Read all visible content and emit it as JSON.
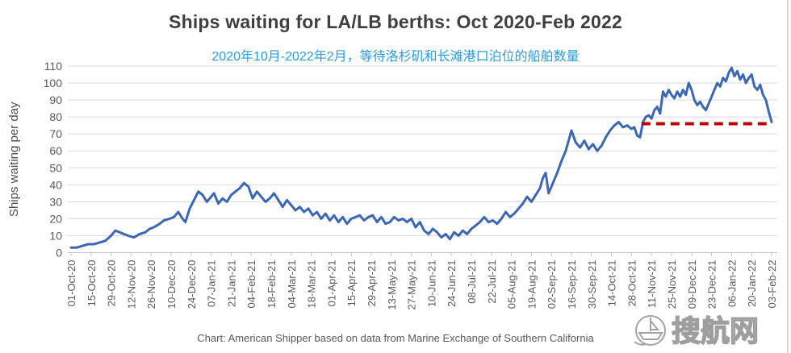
{
  "header": {
    "title": "Ships waiting for LA/LB berths: Oct 2020-Feb 2022",
    "subtitle": "2020年10月-2022年2月，等待洛杉矶和长滩港口泊位的船舶数量"
  },
  "caption": "Chart: American Shipper based on data from Marine Exchange of Southern California",
  "watermark": {
    "text": "搜航网",
    "icon": "ship-logo"
  },
  "colors": {
    "title": "#3f3f3f",
    "subtitle": "#2b9cd8",
    "series_blue": "#3d66b3",
    "reference_red": "#c00000",
    "gridline": "#d9d9d9",
    "axis_line": "#bfbfbf",
    "axis_text": "#595959",
    "watermark_gray": "#9e9e9e"
  },
  "chart_data": {
    "type": "line",
    "title": "Ships waiting for LA/LB berths: Oct 2020-Feb 2022",
    "ylabel": "Ships waiting per day",
    "xlabel": "",
    "ylim": [
      0,
      110
    ],
    "y_ticks": [
      0,
      10,
      20,
      30,
      40,
      50,
      60,
      70,
      80,
      90,
      100,
      110
    ],
    "grid": "horizontal",
    "legend_position": "none",
    "x_tick_interval_days": 14,
    "x_max_day": 490,
    "x_tick_labels": [
      "01-Oct-20",
      "15-Oct-20",
      "29-Oct-20",
      "12-Nov-20",
      "26-Nov-20",
      "10-Dec-20",
      "24-Dec-20",
      "07-Jan-21",
      "21-Jan-21",
      "04-Feb-21",
      "18-Feb-21",
      "04-Mar-21",
      "18-Mar-21",
      "01-Apr-21",
      "15-Apr-21",
      "29-Apr-21",
      "13-May-21",
      "27-May-21",
      "10-Jun-21",
      "24-Jun-21",
      "08-Jul-21",
      "22-Jul-21",
      "05-Aug-21",
      "19-Aug-21",
      "02-Sep-21",
      "16-Sep-21",
      "30-Sep-21",
      "14-Oct-21",
      "28-Oct-21",
      "11-Nov-21",
      "25-Nov-21",
      "09-Dec-21",
      "23-Dec-21",
      "06-Jan-22",
      "20-Jan-22",
      "03-Feb-22"
    ],
    "series": [
      {
        "name": "Ships waiting",
        "color": "#3d66b3",
        "x_days": [
          0,
          4,
          8,
          12,
          16,
          20,
          24,
          28,
          31,
          34,
          37,
          40,
          44,
          48,
          52,
          55,
          58,
          62,
          65,
          69,
          72,
          75,
          78,
          80,
          83,
          86,
          89,
          92,
          95,
          98,
          100,
          103,
          106,
          109,
          112,
          115,
          118,
          121,
          124,
          127,
          130,
          133,
          136,
          139,
          142,
          145,
          148,
          151,
          154,
          157,
          160,
          163,
          166,
          169,
          172,
          175,
          178,
          181,
          184,
          187,
          190,
          193,
          196,
          199,
          202,
          205,
          208,
          211,
          214,
          217,
          220,
          223,
          226,
          229,
          232,
          235,
          238,
          241,
          244,
          247,
          250,
          253,
          256,
          259,
          262,
          265,
          268,
          271,
          274,
          277,
          280,
          283,
          286,
          289,
          292,
          295,
          298,
          301,
          304,
          307,
          310,
          313,
          316,
          319,
          322,
          325,
          328,
          330,
          332,
          334,
          337,
          340,
          343,
          346,
          350,
          353,
          356,
          359,
          362,
          365,
          368,
          371,
          374,
          377,
          380,
          383,
          386,
          389,
          392,
          394,
          396,
          398,
          400,
          402,
          404,
          406,
          408,
          410,
          412,
          414,
          416,
          418,
          420,
          422,
          424,
          426,
          428,
          430,
          432,
          434,
          436,
          438,
          440,
          442,
          444,
          446,
          448,
          450,
          452,
          454,
          456,
          458,
          460,
          462,
          464,
          466,
          468,
          470,
          472,
          474,
          476,
          478,
          480,
          482,
          484,
          486,
          488,
          490
        ],
        "values": [
          3,
          3,
          4,
          5,
          5,
          6,
          7,
          10,
          13,
          12,
          11,
          10,
          9,
          11,
          12,
          14,
          15,
          17,
          19,
          20,
          21,
          24,
          20,
          18,
          26,
          31,
          36,
          34,
          30,
          33,
          35,
          29,
          32,
          30,
          34,
          36,
          38,
          41,
          39,
          32,
          36,
          33,
          30,
          32,
          35,
          31,
          27,
          31,
          28,
          25,
          27,
          24,
          26,
          22,
          24,
          20,
          23,
          19,
          22,
          18,
          21,
          17,
          20,
          21,
          22,
          19,
          21,
          22,
          18,
          21,
          17,
          18,
          21,
          19,
          20,
          18,
          20,
          15,
          18,
          13,
          11,
          14,
          12,
          9,
          11,
          8,
          12,
          10,
          13,
          11,
          14,
          16,
          18,
          21,
          18,
          19,
          17,
          20,
          24,
          21,
          23,
          26,
          29,
          33,
          30,
          34,
          38,
          44,
          47,
          35,
          41,
          47,
          54,
          60,
          72,
          65,
          62,
          66,
          61,
          64,
          60,
          63,
          68,
          72,
          75,
          77,
          74,
          75,
          73,
          74,
          69,
          68,
          77,
          80,
          81,
          79,
          84,
          86,
          82,
          95,
          92,
          96,
          93,
          91,
          95,
          92,
          96,
          93,
          100,
          96,
          90,
          87,
          89,
          86,
          84,
          88,
          92,
          96,
          100,
          98,
          103,
          101,
          106,
          109,
          104,
          107,
          102,
          105,
          100,
          103,
          105,
          98,
          96,
          99,
          93,
          90,
          83,
          77
        ]
      }
    ],
    "reference_line": {
      "y": 76,
      "x_start_day": 399,
      "x_end_day": 490,
      "color": "#c00000",
      "style": "dashed"
    }
  }
}
